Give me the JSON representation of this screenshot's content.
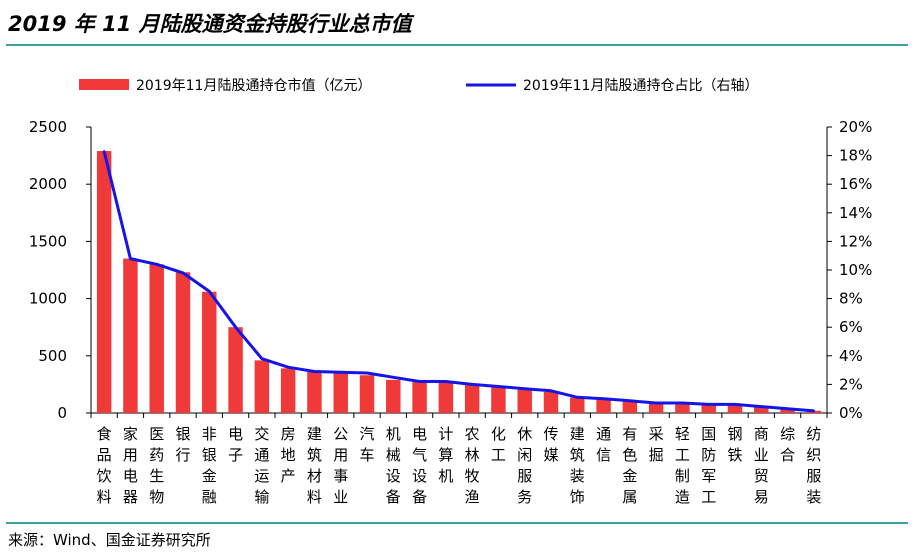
{
  "header": {
    "title": "2019 年 11 月陆股通资金持股行业总市值"
  },
  "footer": {
    "source": "来源：Wind、国金证券研究所"
  },
  "colors": {
    "bar": "#f03a3a",
    "line": "#1515e8",
    "rule": "#3aa0a6"
  },
  "chart_data": {
    "type": "bar",
    "title": "",
    "categories": [
      "食品饮料",
      "家用电器",
      "医药生物",
      "银行",
      "非银金融",
      "电子",
      "交通运输",
      "房地产",
      "建筑材料",
      "公用事业",
      "汽车",
      "机械设备",
      "电气设备",
      "计算机",
      "农林牧渔",
      "化工",
      "休闲服务",
      "传媒",
      "建筑装饰",
      "通信",
      "有色金属",
      "采掘",
      "轻工制造",
      "国防军工",
      "钢铁",
      "商业贸易",
      "综合",
      "纺织服装"
    ],
    "series": [
      {
        "name": "2019年11月陆股通持仓市值（亿元）",
        "type": "bar",
        "axis": "left",
        "values": [
          2290,
          1350,
          1300,
          1230,
          1060,
          750,
          460,
          390,
          360,
          350,
          330,
          290,
          270,
          270,
          250,
          230,
          205,
          185,
          135,
          125,
          110,
          85,
          85,
          75,
          72,
          55,
          35,
          20
        ]
      },
      {
        "name": "2019年11月陆股通持仓占比（右轴）",
        "type": "line",
        "axis": "right",
        "values": [
          18.3,
          10.8,
          10.4,
          9.8,
          8.5,
          6.0,
          3.8,
          3.2,
          2.9,
          2.85,
          2.8,
          2.5,
          2.2,
          2.2,
          2.0,
          1.85,
          1.7,
          1.55,
          1.1,
          1.0,
          0.85,
          0.7,
          0.7,
          0.6,
          0.6,
          0.45,
          0.3,
          0.15
        ]
      }
    ],
    "y_left": {
      "min": 0,
      "max": 2500,
      "ticks": [
        "0",
        "500",
        "1000",
        "1500",
        "2000",
        "2500"
      ]
    },
    "y_right": {
      "min": 0,
      "max": 20,
      "ticks": [
        "0%",
        "2%",
        "4%",
        "6%",
        "8%",
        "10%",
        "12%",
        "14%",
        "16%",
        "18%",
        "20%"
      ]
    },
    "grid": false,
    "legend_position": "top"
  }
}
